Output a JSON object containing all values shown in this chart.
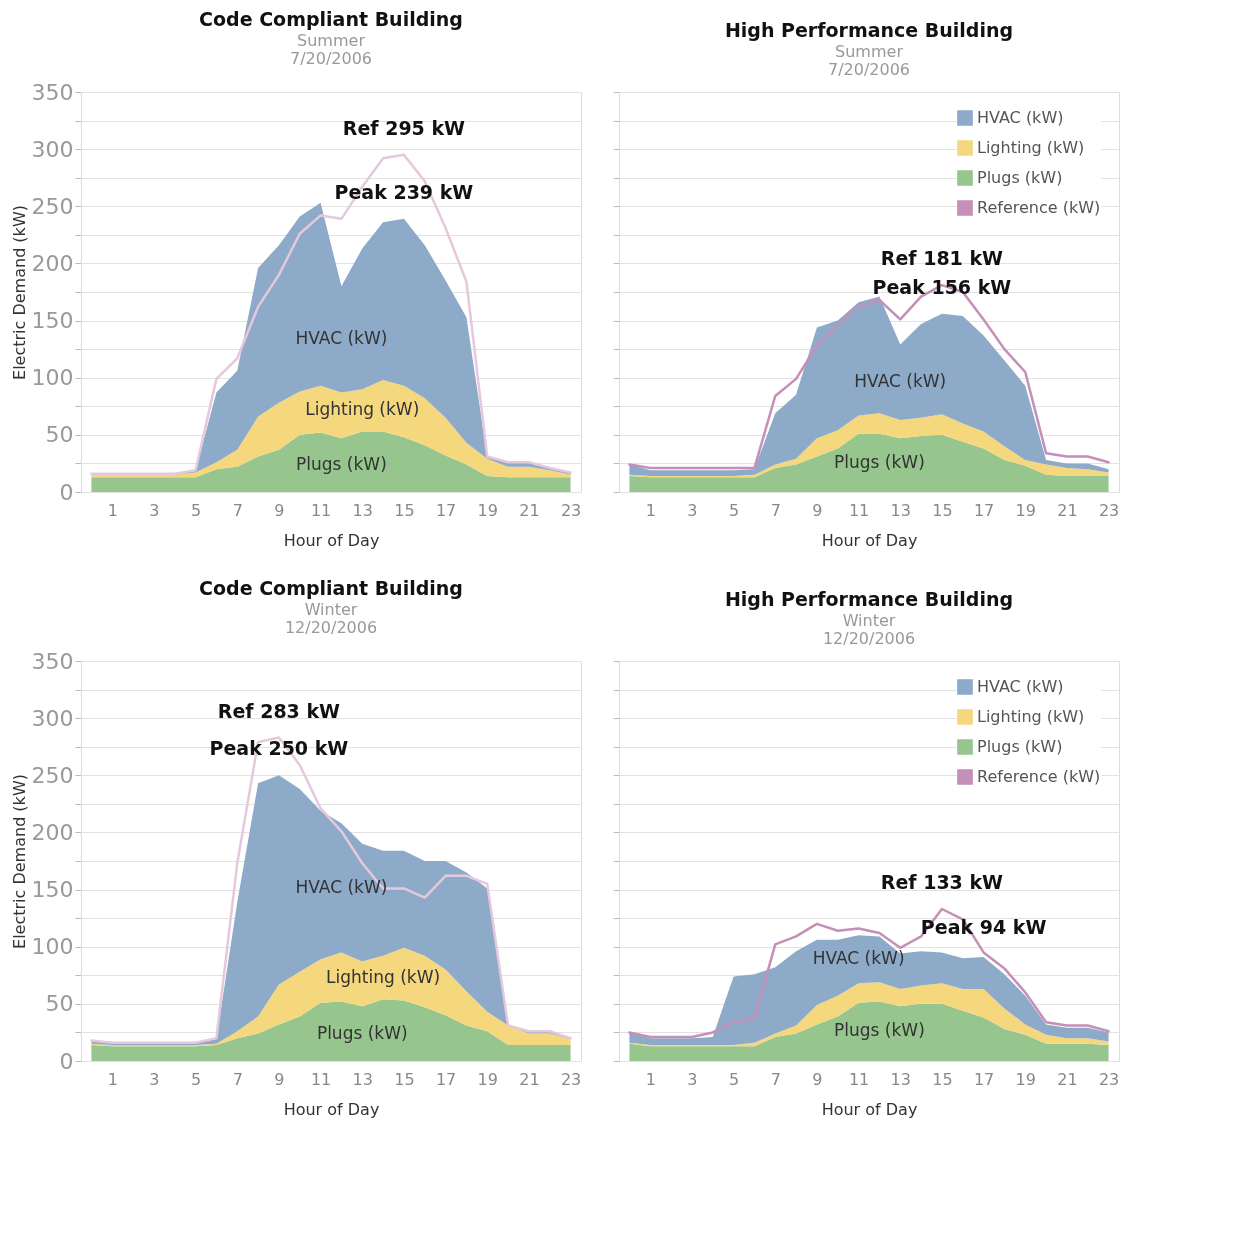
{
  "chart_data": [
    {
      "type": "area",
      "stacked": true,
      "title": "Code Compliant Building",
      "subtitle": "Summer\n7/20/2006",
      "xlabel": "Hour of Day",
      "ylabel": "Electric Demand (kW)",
      "x": [
        0,
        1,
        2,
        3,
        4,
        5,
        6,
        7,
        8,
        9,
        10,
        11,
        12,
        13,
        14,
        15,
        16,
        17,
        18,
        19,
        20,
        21,
        22,
        23
      ],
      "series": [
        {
          "name": "Plugs (kW)",
          "color": "#96c68e",
          "values": [
            13,
            13,
            13,
            13,
            13,
            13,
            20,
            22,
            31,
            37,
            50,
            52,
            47,
            53,
            53,
            48,
            41,
            32,
            24,
            14,
            13,
            13,
            13,
            13
          ]
        },
        {
          "name": "Lighting (kW)",
          "color": "#f5d77e",
          "values": [
            2,
            2,
            2,
            2,
            2,
            4,
            6,
            15,
            35,
            41,
            38,
            41,
            40,
            37,
            45,
            45,
            41,
            33,
            19,
            15,
            9,
            9,
            6,
            2
          ]
        },
        {
          "name": "HVAC (kW)",
          "color": "#8eaac9",
          "values": [
            1,
            1,
            1,
            1,
            1,
            2,
            61,
            69,
            130,
            138,
            153,
            160,
            93,
            123,
            138,
            146,
            134,
            120,
            110,
            2,
            4,
            4,
            2,
            2
          ]
        },
        {
          "type": "line",
          "color": "#e6c8dd",
          "values": [
            16,
            16,
            16,
            16,
            16,
            19,
            99,
            117,
            162,
            190,
            226,
            242,
            239,
            267,
            292,
            295,
            272,
            231,
            184,
            31,
            26,
            26,
            21,
            17
          ]
        }
      ],
      "xlim": [
        -0.5,
        23.5
      ],
      "xticks": [
        1,
        3,
        5,
        7,
        9,
        11,
        13,
        15,
        17,
        19,
        21,
        23
      ],
      "ylim": [
        0,
        350
      ],
      "yticks": [
        0,
        {
          "value": 25,
          "label": null
        },
        50,
        {
          "value": 75,
          "label": null
        },
        100,
        {
          "value": 125,
          "label": null
        },
        150,
        {
          "value": 175,
          "label": null
        },
        200,
        {
          "value": 225,
          "label": null
        },
        250,
        {
          "value": 275,
          "label": null
        },
        300,
        {
          "value": 325,
          "label": null
        },
        350
      ],
      "grid": "y",
      "line_style": "solid",
      "annotations": [
        {
          "text": "Ref 295 kW",
          "x": 15,
          "y": 295
        },
        {
          "text": "Peak 239 kW",
          "x": 15,
          "y": 239
        }
      ]
    },
    {
      "type": "area",
      "stacked": true,
      "title": "High Performance Building",
      "subtitle": "Summer\n7/20/2006",
      "xlabel": "Hour of Day",
      "x": [
        0,
        1,
        2,
        3,
        4,
        5,
        6,
        7,
        8,
        9,
        10,
        11,
        12,
        13,
        14,
        15,
        16,
        17,
        18,
        19,
        20,
        21,
        22,
        23
      ],
      "series": [
        {
          "name": "Plugs (kW)",
          "color": "#96c68e",
          "values": [
            14,
            13,
            13,
            13,
            13,
            13,
            13,
            21,
            24,
            31,
            38,
            51,
            51,
            47,
            49,
            50,
            44,
            38,
            28,
            23,
            15,
            14,
            14,
            14
          ]
        },
        {
          "name": "Lighting (kW)",
          "color": "#f5d77e",
          "values": [
            1,
            1,
            1,
            1,
            1,
            1,
            2,
            3,
            5,
            16,
            16,
            16,
            18,
            16,
            16,
            18,
            16,
            15,
            12,
            5,
            9,
            7,
            6,
            3
          ]
        },
        {
          "name": "HVAC (kW)",
          "color": "#8eaac9",
          "values": [
            9,
            5,
            5,
            5,
            5,
            5,
            5,
            45,
            56,
            97,
            96,
            99,
            102,
            66,
            82,
            88,
            94,
            84,
            75,
            65,
            4,
            4,
            5,
            3
          ]
        },
        {
          "name": "Reference (kW)",
          "type": "line",
          "color": "#c48fb8",
          "values": [
            24,
            21,
            21,
            21,
            21,
            21,
            21,
            84,
            99,
            128,
            146,
            162,
            168,
            151,
            171,
            181,
            175,
            151,
            125,
            105,
            34,
            31,
            31,
            26
          ]
        }
      ],
      "xlim": [
        -0.5,
        23.5
      ],
      "xticks": [
        1,
        3,
        5,
        7,
        9,
        11,
        13,
        15,
        17,
        19,
        21,
        23
      ],
      "ylim": [
        0,
        350
      ],
      "yticks": [
        0,
        {
          "value": 25,
          "label": null
        },
        50,
        {
          "value": 75,
          "label": null
        },
        100,
        {
          "value": 125,
          "label": null
        },
        150,
        {
          "value": 175,
          "label": null
        },
        200,
        {
          "value": 225,
          "label": null
        },
        250,
        {
          "value": 275,
          "label": null
        },
        300,
        {
          "value": 325,
          "label": null
        },
        350
      ],
      "tick_labels": "x",
      "grid": "y",
      "legend": "top right",
      "line_style": "solid",
      "annotations": [
        {
          "text": "Ref 181 kW",
          "x": 15,
          "y": 181
        },
        {
          "text": "Peak 156 kW",
          "x": 15,
          "y": 156
        }
      ]
    },
    {
      "type": "area",
      "stacked": true,
      "title": "Code Compliant Building",
      "subtitle": "Winter\n12/20/2006",
      "xlabel": "Hour of Day",
      "ylabel": "Electric Demand (kW)",
      "x": [
        0,
        1,
        2,
        3,
        4,
        5,
        6,
        7,
        8,
        9,
        10,
        11,
        12,
        13,
        14,
        15,
        16,
        17,
        18,
        19,
        20,
        21,
        22,
        23
      ],
      "series": [
        {
          "name": "Plugs (kW)",
          "color": "#96c68e",
          "values": [
            14,
            13,
            13,
            13,
            13,
            13,
            14,
            20,
            24,
            32,
            39,
            51,
            52,
            48,
            54,
            53,
            47,
            40,
            31,
            26,
            14,
            14,
            14,
            14
          ]
        },
        {
          "name": "Lighting (kW)",
          "color": "#f5d77e",
          "values": [
            1,
            1,
            1,
            1,
            1,
            1,
            1,
            6,
            15,
            35,
            39,
            38,
            43,
            39,
            38,
            46,
            45,
            40,
            30,
            17,
            17,
            10,
            10,
            5
          ]
        },
        {
          "name": "HVAC (kW)",
          "color": "#8eaac9",
          "values": [
            3,
            2,
            2,
            2,
            2,
            2,
            4,
            113,
            204,
            183,
            160,
            130,
            113,
            103,
            92,
            85,
            83,
            95,
            104,
            108,
            0,
            3,
            3,
            1
          ]
        },
        {
          "type": "line",
          "color": "#e6c8dd",
          "values": [
            18,
            16,
            16,
            16,
            16,
            16,
            20,
            173,
            279,
            283,
            259,
            221,
            201,
            173,
            151,
            151,
            143,
            162,
            162,
            155,
            31,
            26,
            26,
            20
          ]
        }
      ],
      "xlim": [
        -0.5,
        23.5
      ],
      "xticks": [
        1,
        3,
        5,
        7,
        9,
        11,
        13,
        15,
        17,
        19,
        21,
        23
      ],
      "ylim": [
        0,
        350
      ],
      "yticks": [
        0,
        {
          "value": 25,
          "label": null
        },
        50,
        {
          "value": 75,
          "label": null
        },
        100,
        {
          "value": 125,
          "label": null
        },
        150,
        {
          "value": 175,
          "label": null
        },
        200,
        {
          "value": 225,
          "label": null
        },
        250,
        {
          "value": 275,
          "label": null
        },
        300,
        {
          "value": 325,
          "label": null
        },
        350
      ],
      "grid": "y",
      "line_style": "solid",
      "annotations": [
        {
          "text": "Ref 283 kW",
          "x": 9,
          "y": 283
        },
        {
          "text": "Peak 250 kW",
          "x": 9,
          "y": 250
        }
      ]
    },
    {
      "type": "area",
      "stacked": true,
      "title": "High Performance Building",
      "subtitle": "Winter\n12/20/2006",
      "xlabel": "Hour of Day",
      "x": [
        0,
        1,
        2,
        3,
        4,
        5,
        6,
        7,
        8,
        9,
        10,
        11,
        12,
        13,
        14,
        15,
        16,
        17,
        18,
        19,
        20,
        21,
        22,
        23
      ],
      "series": [
        {
          "name": "Plugs (kW)",
          "color": "#96c68e",
          "values": [
            15,
            13,
            13,
            13,
            13,
            13,
            13,
            21,
            24,
            32,
            39,
            51,
            52,
            48,
            50,
            50,
            44,
            38,
            28,
            23,
            15,
            15,
            15,
            14
          ]
        },
        {
          "name": "Lighting (kW)",
          "color": "#f5d77e",
          "values": [
            1,
            1,
            1,
            1,
            1,
            1,
            3,
            3,
            7,
            17,
            18,
            17,
            17,
            15,
            16,
            18,
            19,
            25,
            18,
            9,
            8,
            5,
            5,
            3
          ]
        },
        {
          "name": "HVAC (kW)",
          "color": "#8eaac9",
          "values": [
            9,
            6,
            6,
            6,
            7,
            60,
            60,
            58,
            65,
            57,
            49,
            42,
            40,
            31,
            30,
            27,
            27,
            28,
            30,
            25,
            9,
            9,
            9,
            8
          ]
        },
        {
          "name": "Reference (kW)",
          "type": "line",
          "color": "#c48fb8",
          "values": [
            25,
            21,
            21,
            21,
            25,
            34,
            37,
            102,
            109,
            120,
            114,
            116,
            112,
            99,
            109,
            133,
            124,
            95,
            81,
            60,
            34,
            31,
            31,
            26
          ]
        }
      ],
      "xlim": [
        -0.5,
        23.5
      ],
      "xticks": [
        1,
        3,
        5,
        7,
        9,
        11,
        13,
        15,
        17,
        19,
        21,
        23
      ],
      "ylim": [
        0,
        350
      ],
      "yticks": [
        0,
        {
          "value": 25,
          "label": null
        },
        50,
        {
          "value": 75,
          "label": null
        },
        100,
        {
          "value": 125,
          "label": null
        },
        150,
        {
          "value": 175,
          "label": null
        },
        200,
        {
          "value": 225,
          "label": null
        },
        250,
        {
          "value": 275,
          "label": null
        },
        300,
        {
          "value": 325,
          "label": null
        },
        350
      ],
      "tick_labels": "x",
      "grid": "y",
      "legend": "top right",
      "line_style": "solid",
      "annotations": [
        {
          "text": "Ref 133 kW",
          "x": 15,
          "y": 133
        },
        {
          "text": "Peak 94 kW",
          "x": 17,
          "y": 94
        }
      ]
    }
  ]
}
